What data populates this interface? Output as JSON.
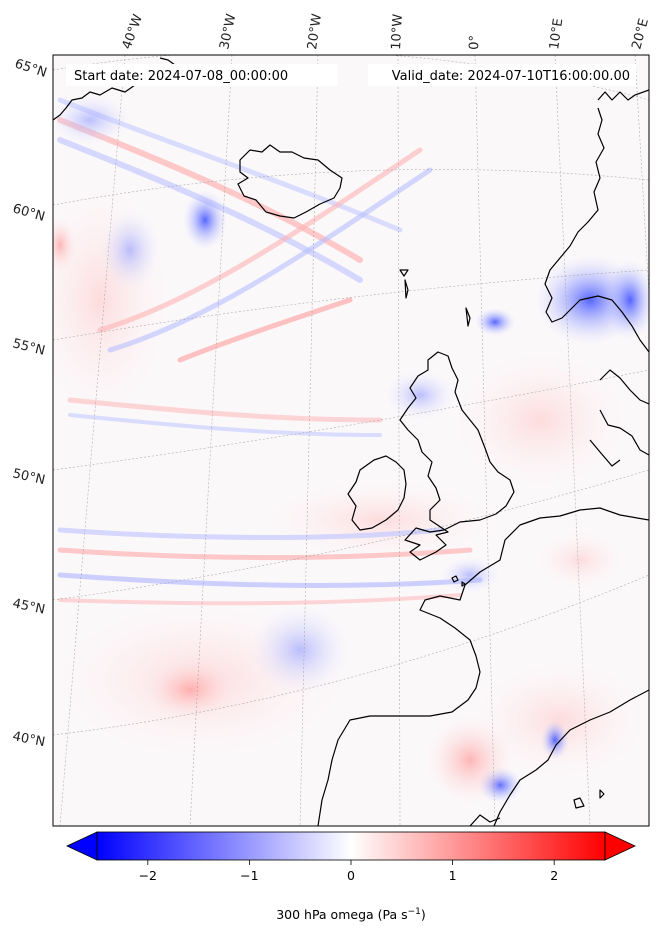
{
  "header": {
    "start_date": "Start date: 2024-07-08_00:00:00",
    "valid_date": "Valid_date: 2024-07-10T16:00:00.00"
  },
  "graticule": {
    "longitudes": [
      "40°W",
      "30°W",
      "20°W",
      "10°W",
      "0°",
      "10°E",
      "20°E"
    ],
    "latitudes": [
      "65°N",
      "60°N",
      "55°N",
      "50°N",
      "45°N",
      "40°N"
    ]
  },
  "colorbar": {
    "label_prefix": "300 hPa omega (Pa s",
    "label_exp": "−1",
    "label_suffix": ")",
    "ticks": [
      -2,
      -1,
      0,
      1,
      2
    ],
    "tick_labels": [
      "−2",
      "−1",
      "0",
      "1",
      "2"
    ],
    "range": [
      -2.5,
      2.5
    ],
    "colormap": "bwr",
    "extend": "both",
    "colors": {
      "low": "#0000ff",
      "mid": "#ffffff",
      "high": "#ff0000"
    }
  },
  "map": {
    "field": "300 hPa omega",
    "projection": "lambert-conformal",
    "coastline_color": "#000000",
    "gridline_style": "dotted-gray"
  }
}
